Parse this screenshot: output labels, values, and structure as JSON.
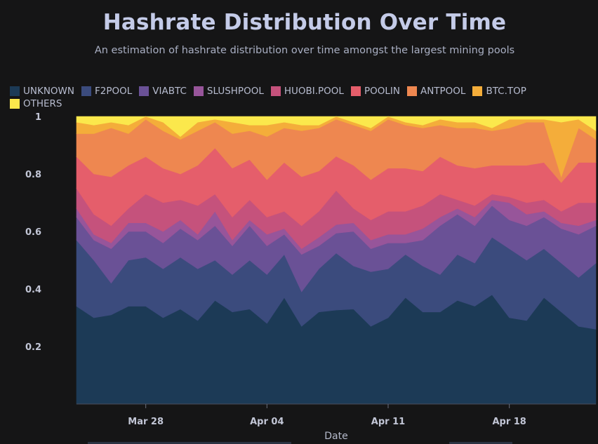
{
  "chart_data": {
    "type": "area",
    "title": "Hashrate Distribution Over Time",
    "subtitle": "An estimation of hashrate distribution over time amongst the largest mining pools",
    "xlabel": "Date",
    "ylabel": "",
    "ylim": [
      0,
      1
    ],
    "yticks": [
      "0.2",
      "0.4",
      "0.6",
      "0.8",
      "1"
    ],
    "ytick_values": [
      0.2,
      0.4,
      0.6,
      0.8,
      1
    ],
    "xticks": [
      "Mar 28",
      "Apr 04",
      "Apr 11",
      "Apr 18"
    ],
    "xtick_values": [
      "2021-03-28",
      "2021-04-04",
      "2021-04-11",
      "2021-04-18"
    ],
    "x": [
      "2021-03-24",
      "2021-03-25",
      "2021-03-26",
      "2021-03-27",
      "2021-03-28",
      "2021-03-29",
      "2021-03-30",
      "2021-03-31",
      "2021-04-01",
      "2021-04-02",
      "2021-04-03",
      "2021-04-04",
      "2021-04-05",
      "2021-04-06",
      "2021-04-07",
      "2021-04-08",
      "2021-04-09",
      "2021-04-10",
      "2021-04-11",
      "2021-04-12",
      "2021-04-13",
      "2021-04-14",
      "2021-04-15",
      "2021-04-16",
      "2021-04-17",
      "2021-04-18",
      "2021-04-19",
      "2021-04-20",
      "2021-04-21",
      "2021-04-22",
      "2021-04-23"
    ],
    "stacked": true,
    "legend_position": "top-left",
    "series": [
      {
        "name": "UNKNOWN",
        "color": "#1c3a56",
        "values": [
          0.34,
          0.3,
          0.31,
          0.34,
          0.34,
          0.3,
          0.33,
          0.29,
          0.36,
          0.32,
          0.33,
          0.28,
          0.37,
          0.27,
          0.32,
          0.33,
          0.33,
          0.27,
          0.3,
          0.37,
          0.32,
          0.32,
          0.36,
          0.34,
          0.38,
          0.3,
          0.29,
          0.37,
          0.32,
          0.27,
          0.26
        ]
      },
      {
        "name": "F2POOL",
        "color": "#3b4b7d",
        "values": [
          0.23,
          0.2,
          0.11,
          0.16,
          0.17,
          0.17,
          0.18,
          0.18,
          0.14,
          0.13,
          0.17,
          0.17,
          0.15,
          0.12,
          0.15,
          0.2,
          0.15,
          0.19,
          0.17,
          0.15,
          0.16,
          0.13,
          0.16,
          0.15,
          0.2,
          0.24,
          0.21,
          0.17,
          0.17,
          0.17,
          0.23
        ]
      },
      {
        "name": "VIABTC",
        "color": "#6a5196",
        "values": [
          0.08,
          0.07,
          0.12,
          0.1,
          0.09,
          0.09,
          0.1,
          0.1,
          0.12,
          0.1,
          0.12,
          0.1,
          0.07,
          0.13,
          0.08,
          0.07,
          0.12,
          0.08,
          0.09,
          0.04,
          0.09,
          0.17,
          0.14,
          0.13,
          0.11,
          0.1,
          0.12,
          0.11,
          0.12,
          0.15,
          0.13
        ]
      },
      {
        "name": "SLUSHPOOL",
        "color": "#97559a",
        "values": [
          0.03,
          0.02,
          0.02,
          0.03,
          0.03,
          0.04,
          0.03,
          0.02,
          0.05,
          0.02,
          0.02,
          0.04,
          0.02,
          0.02,
          0.03,
          0.03,
          0.03,
          0.03,
          0.03,
          0.03,
          0.04,
          0.03,
          0.02,
          0.03,
          0.02,
          0.06,
          0.04,
          0.02,
          0.02,
          0.03,
          0.02
        ]
      },
      {
        "name": "HUOBI.POOL",
        "color": "#c5527c",
        "values": [
          0.07,
          0.07,
          0.06,
          0.05,
          0.1,
          0.1,
          0.07,
          0.1,
          0.06,
          0.08,
          0.07,
          0.06,
          0.06,
          0.08,
          0.09,
          0.12,
          0.05,
          0.07,
          0.08,
          0.08,
          0.08,
          0.08,
          0.03,
          0.04,
          0.02,
          0.02,
          0.04,
          0.04,
          0.04,
          0.08,
          0.06
        ]
      },
      {
        "name": "POOLIN",
        "color": "#e55e6b",
        "values": [
          0.11,
          0.14,
          0.17,
          0.15,
          0.13,
          0.12,
          0.09,
          0.14,
          0.16,
          0.17,
          0.14,
          0.13,
          0.17,
          0.17,
          0.14,
          0.12,
          0.15,
          0.14,
          0.15,
          0.15,
          0.12,
          0.13,
          0.12,
          0.13,
          0.1,
          0.11,
          0.13,
          0.13,
          0.1,
          0.14,
          0.14
        ]
      },
      {
        "name": "ANTPOOL",
        "color": "#ee8750",
        "values": [
          0.08,
          0.14,
          0.17,
          0.11,
          0.13,
          0.13,
          0.12,
          0.12,
          0.09,
          0.12,
          0.1,
          0.15,
          0.12,
          0.16,
          0.15,
          0.13,
          0.14,
          0.17,
          0.17,
          0.15,
          0.15,
          0.11,
          0.13,
          0.14,
          0.12,
          0.13,
          0.15,
          0.14,
          0.02,
          0.12,
          0.08
        ]
      },
      {
        "name": "BTC.TOP",
        "color": "#f4ad3a",
        "values": [
          0.04,
          0.03,
          0.02,
          0.03,
          0.01,
          0.03,
          0.01,
          0.03,
          0.01,
          0.04,
          0.02,
          0.04,
          0.02,
          0.02,
          0.01,
          0.01,
          0.01,
          0.01,
          0.01,
          0.01,
          0.01,
          0.02,
          0.02,
          0.02,
          0.01,
          0.03,
          0.01,
          0.01,
          0.19,
          0.03,
          0.03
        ]
      },
      {
        "name": "OTHERS",
        "color": "#fbe84c",
        "values": [
          0.02,
          0.03,
          0.02,
          0.03,
          0.0,
          0.02,
          0.07,
          0.02,
          0.01,
          0.02,
          0.03,
          0.03,
          0.02,
          0.03,
          0.03,
          0.0,
          0.02,
          0.04,
          0.0,
          0.02,
          0.03,
          0.01,
          0.02,
          0.02,
          0.04,
          0.01,
          0.01,
          0.01,
          0.02,
          0.01,
          0.05
        ]
      }
    ]
  }
}
